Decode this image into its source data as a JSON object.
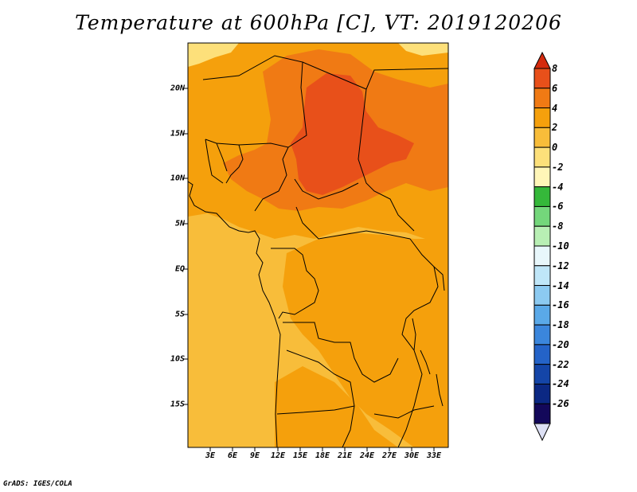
{
  "title": "Temperature at 600hPa [C], VT: 2019120206",
  "credit": "GrADS: IGES/COLA",
  "map": {
    "lat_labels": [
      "20N",
      "15N",
      "10N",
      "5N",
      "EQ",
      "5S",
      "10S",
      "15S"
    ],
    "lon_labels": [
      "3E",
      "6E",
      "9E",
      "12E",
      "15E",
      "18E",
      "21E",
      "24E",
      "27E",
      "30E",
      "33E"
    ]
  },
  "colorbar": {
    "labels": [
      "8",
      "6",
      "4",
      "2",
      "0",
      "-2",
      "-4",
      "-6",
      "-8",
      "-10",
      "-12",
      "-14",
      "-16",
      "-18",
      "-20",
      "-22",
      "-24",
      "-26"
    ],
    "colors": [
      "#d42a0e",
      "#e8501a",
      "#f07a14",
      "#f5a00c",
      "#f8bd3a",
      "#fde07a",
      "#fff6b8",
      "#35b83a",
      "#74d77b",
      "#b8efb4",
      "#e8f7fb",
      "#bfe6f8",
      "#8ccaf1",
      "#5aa9e8",
      "#3b86dc",
      "#2463c8",
      "#1445a8",
      "#0b2883",
      "#13085a",
      "#dde0f4"
    ]
  }
}
